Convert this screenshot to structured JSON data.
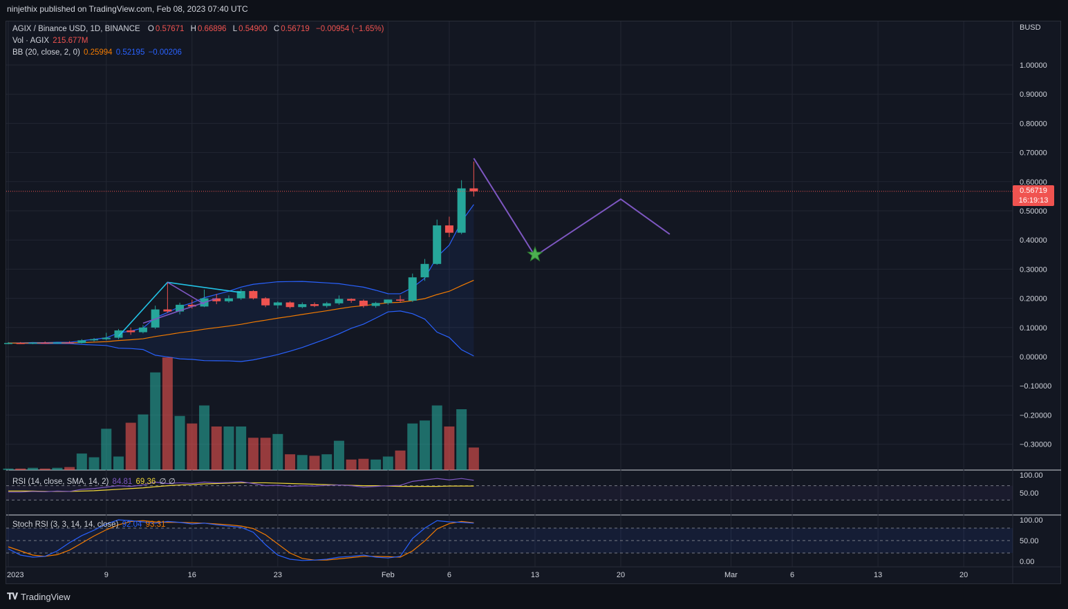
{
  "header": {
    "published": "ninjethix published on TradingView.com, Feb 08, 2023 07:40 UTC"
  },
  "legend": {
    "symbol": "AGIX / Binance USD, 1D, BINANCE",
    "o_label": "O",
    "o": "0.57671",
    "h_label": "H",
    "h": "0.66896",
    "l_label": "L",
    "l": "0.54900",
    "c_label": "C",
    "c": "0.56719",
    "change": "−0.00954 (−1.65%)",
    "vol_label": "Vol · AGIX",
    "vol": "215.677M",
    "bb_label": "BB (20, close, 2, 0)",
    "bb_basis": "0.25994",
    "bb_upper": "0.52195",
    "bb_lower": "−0.00206",
    "rsi_label": "RSI (14, close, SMA, 14, 2)",
    "rsi": "84.81",
    "rsi_ma": "69.36",
    "rsi_extra": "∅ ∅",
    "stoch_label": "Stoch RSI (3, 3, 14, 14, close)",
    "stoch_k": "92.04",
    "stoch_d": "93.31"
  },
  "price_tag": {
    "price": "0.56719",
    "countdown": "16:19:13"
  },
  "currency": "BUSD",
  "footer": {
    "brand": "TradingView"
  },
  "colors": {
    "up": "#26a69a",
    "down": "#ef5350",
    "bb_basis": "#f57c00",
    "bb_band": "#2962ff",
    "projection": "#7e57c2",
    "rsi": "#7e57c2",
    "rsi_ma": "#f1d83a",
    "stoch_k": "#2962ff",
    "stoch_d": "#f57c00",
    "star": "#4caf50"
  },
  "chart_data": {
    "type": "candlestick",
    "y_axis_ticks": [
      "1.00000",
      "0.90000",
      "0.80000",
      "0.70000",
      "0.60000",
      "0.50000",
      "0.40000",
      "0.30000",
      "0.20000",
      "0.10000",
      "0.00000",
      "−0.10000",
      "−0.20000",
      "−0.30000"
    ],
    "ylim": [
      -0.39,
      1.08
    ],
    "x_axis_ticks": [
      {
        "label": "2023",
        "day": 0
      },
      {
        "label": "9",
        "day": 8
      },
      {
        "label": "16",
        "day": 15
      },
      {
        "label": "23",
        "day": 22
      },
      {
        "label": "Feb",
        "day": 31
      },
      {
        "label": "6",
        "day": 36
      },
      {
        "label": "13",
        "day": 43
      },
      {
        "label": "20",
        "day": 50
      },
      {
        "label": "Mar",
        "day": 59
      },
      {
        "label": "6",
        "day": 64
      },
      {
        "label": "13",
        "day": 71
      },
      {
        "label": "20",
        "day": 78
      }
    ],
    "candles": [
      {
        "day": 0,
        "o": 0.046,
        "h": 0.05,
        "l": 0.043,
        "c": 0.047
      },
      {
        "day": 1,
        "o": 0.047,
        "h": 0.05,
        "l": 0.044,
        "c": 0.046
      },
      {
        "day": 2,
        "o": 0.046,
        "h": 0.05,
        "l": 0.043,
        "c": 0.048
      },
      {
        "day": 3,
        "o": 0.048,
        "h": 0.052,
        "l": 0.045,
        "c": 0.046
      },
      {
        "day": 4,
        "o": 0.046,
        "h": 0.05,
        "l": 0.044,
        "c": 0.049
      },
      {
        "day": 5,
        "o": 0.049,
        "h": 0.053,
        "l": 0.046,
        "c": 0.047
      },
      {
        "day": 6,
        "o": 0.047,
        "h": 0.06,
        "l": 0.045,
        "c": 0.056
      },
      {
        "day": 7,
        "o": 0.056,
        "h": 0.064,
        "l": 0.052,
        "c": 0.06
      },
      {
        "day": 8,
        "o": 0.06,
        "h": 0.082,
        "l": 0.056,
        "c": 0.065
      },
      {
        "day": 9,
        "o": 0.065,
        "h": 0.095,
        "l": 0.06,
        "c": 0.09
      },
      {
        "day": 10,
        "o": 0.09,
        "h": 0.1,
        "l": 0.075,
        "c": 0.084
      },
      {
        "day": 11,
        "o": 0.084,
        "h": 0.108,
        "l": 0.08,
        "c": 0.1
      },
      {
        "day": 12,
        "o": 0.1,
        "h": 0.175,
        "l": 0.095,
        "c": 0.162
      },
      {
        "day": 13,
        "o": 0.162,
        "h": 0.255,
        "l": 0.15,
        "c": 0.155
      },
      {
        "day": 14,
        "o": 0.155,
        "h": 0.185,
        "l": 0.145,
        "c": 0.178
      },
      {
        "day": 15,
        "o": 0.178,
        "h": 0.195,
        "l": 0.165,
        "c": 0.172
      },
      {
        "day": 16,
        "o": 0.172,
        "h": 0.23,
        "l": 0.17,
        "c": 0.2
      },
      {
        "day": 17,
        "o": 0.2,
        "h": 0.215,
        "l": 0.18,
        "c": 0.19
      },
      {
        "day": 18,
        "o": 0.19,
        "h": 0.21,
        "l": 0.185,
        "c": 0.2
      },
      {
        "day": 19,
        "o": 0.2,
        "h": 0.232,
        "l": 0.195,
        "c": 0.225
      },
      {
        "day": 20,
        "o": 0.225,
        "h": 0.228,
        "l": 0.196,
        "c": 0.2
      },
      {
        "day": 21,
        "o": 0.2,
        "h": 0.204,
        "l": 0.17,
        "c": 0.176
      },
      {
        "day": 22,
        "o": 0.176,
        "h": 0.19,
        "l": 0.165,
        "c": 0.186
      },
      {
        "day": 23,
        "o": 0.186,
        "h": 0.19,
        "l": 0.165,
        "c": 0.17
      },
      {
        "day": 24,
        "o": 0.17,
        "h": 0.186,
        "l": 0.166,
        "c": 0.18
      },
      {
        "day": 25,
        "o": 0.18,
        "h": 0.186,
        "l": 0.17,
        "c": 0.174
      },
      {
        "day": 26,
        "o": 0.174,
        "h": 0.188,
        "l": 0.168,
        "c": 0.183
      },
      {
        "day": 27,
        "o": 0.183,
        "h": 0.21,
        "l": 0.178,
        "c": 0.198
      },
      {
        "day": 28,
        "o": 0.198,
        "h": 0.2,
        "l": 0.185,
        "c": 0.192
      },
      {
        "day": 29,
        "o": 0.192,
        "h": 0.196,
        "l": 0.168,
        "c": 0.174
      },
      {
        "day": 30,
        "o": 0.174,
        "h": 0.188,
        "l": 0.168,
        "c": 0.184
      },
      {
        "day": 31,
        "o": 0.184,
        "h": 0.196,
        "l": 0.178,
        "c": 0.196
      },
      {
        "day": 32,
        "o": 0.196,
        "h": 0.21,
        "l": 0.185,
        "c": 0.192
      },
      {
        "day": 33,
        "o": 0.192,
        "h": 0.285,
        "l": 0.188,
        "c": 0.272
      },
      {
        "day": 34,
        "o": 0.272,
        "h": 0.335,
        "l": 0.26,
        "c": 0.318
      },
      {
        "day": 35,
        "o": 0.318,
        "h": 0.47,
        "l": 0.315,
        "c": 0.45
      },
      {
        "day": 36,
        "o": 0.45,
        "h": 0.48,
        "l": 0.41,
        "c": 0.425
      },
      {
        "day": 37,
        "o": 0.425,
        "h": 0.605,
        "l": 0.42,
        "c": 0.577
      },
      {
        "day": 38,
        "o": 0.577,
        "h": 0.669,
        "l": 0.549,
        "c": 0.567
      }
    ],
    "volume_relative": [
      0.02,
      0.02,
      0.03,
      0.02,
      0.03,
      0.04,
      0.22,
      0.17,
      0.55,
      0.18,
      0.63,
      0.74,
      1.3,
      1.5,
      0.72,
      0.62,
      0.86,
      0.58,
      0.58,
      0.58,
      0.43,
      0.43,
      0.48,
      0.21,
      0.2,
      0.19,
      0.21,
      0.39,
      0.14,
      0.15,
      0.14,
      0.18,
      0.26,
      0.62,
      0.66,
      0.86,
      0.58,
      0.81,
      0.3
    ],
    "projection_path": [
      {
        "day": 38,
        "price": 0.68
      },
      {
        "day": 43,
        "price": 0.345
      },
      {
        "day": 50,
        "price": 0.54
      },
      {
        "day": 54,
        "price": 0.42
      }
    ],
    "star_point": {
      "day": 43,
      "price": 0.35
    },
    "rsi_axis_ticks": [
      "100.00",
      "50.00"
    ],
    "stoch_axis_ticks": [
      "100.00",
      "50.00",
      "0.00"
    ]
  }
}
